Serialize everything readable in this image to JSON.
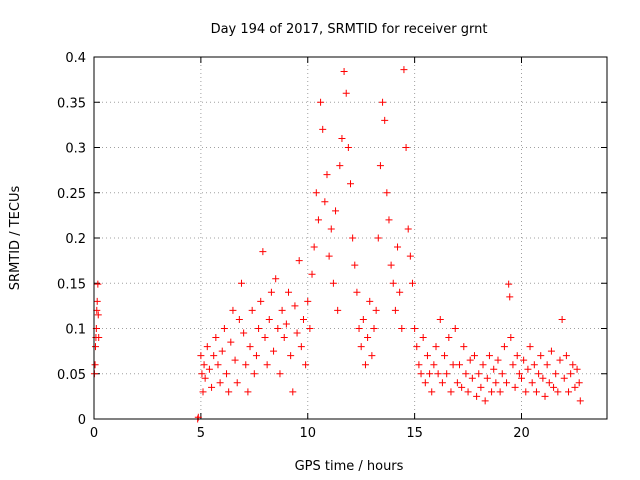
{
  "chart_data": {
    "type": "scatter",
    "title": "Day 194 of 2017, SRMTID for receiver grnt",
    "xlabel": "GPS time / hours",
    "ylabel": "SRMTID / TECUs",
    "xlim": [
      0,
      24
    ],
    "ylim": [
      0,
      0.4
    ],
    "xticks": [
      0,
      5,
      10,
      15,
      20
    ],
    "yticks": [
      0,
      0.05,
      0.1,
      0.15,
      0.2,
      0.25,
      0.3,
      0.35,
      0.4
    ],
    "xtick_labels": [
      "0",
      "5",
      "10",
      "15",
      "20"
    ],
    "ytick_labels": [
      "0",
      "0.05",
      "0.1",
      "0.15",
      "0.2",
      "0.25",
      "0.3",
      "0.35",
      "0.4"
    ],
    "grid": true,
    "marker": "+",
    "colors": {
      "series": "#ff0000",
      "grid": "#a0a0a0",
      "axis": "#000000"
    },
    "series": [
      {
        "name": "SRMTID",
        "points": [
          [
            0.02,
            0.05
          ],
          [
            0.05,
            0.06
          ],
          [
            0.07,
            0.08
          ],
          [
            0.09,
            0.09
          ],
          [
            0.11,
            0.1
          ],
          [
            0.13,
            0.12
          ],
          [
            0.15,
            0.13
          ],
          [
            0.18,
            0.149
          ],
          [
            0.2,
            0.115
          ],
          [
            0.22,
            0.09
          ],
          [
            4.85,
            0.0
          ],
          [
            4.88,
            0.002
          ],
          [
            5.0,
            0.07
          ],
          [
            5.05,
            0.05
          ],
          [
            5.1,
            0.03
          ],
          [
            5.15,
            0.06
          ],
          [
            5.2,
            0.045
          ],
          [
            5.3,
            0.08
          ],
          [
            5.4,
            0.055
          ],
          [
            5.5,
            0.035
          ],
          [
            5.6,
            0.07
          ],
          [
            5.7,
            0.09
          ],
          [
            5.8,
            0.06
          ],
          [
            5.9,
            0.04
          ],
          [
            6.0,
            0.075
          ],
          [
            6.1,
            0.1
          ],
          [
            6.2,
            0.05
          ],
          [
            6.3,
            0.03
          ],
          [
            6.4,
            0.085
          ],
          [
            6.5,
            0.12
          ],
          [
            6.6,
            0.065
          ],
          [
            6.7,
            0.04
          ],
          [
            6.8,
            0.11
          ],
          [
            6.9,
            0.15
          ],
          [
            7.0,
            0.095
          ],
          [
            7.1,
            0.06
          ],
          [
            7.2,
            0.03
          ],
          [
            7.3,
            0.08
          ],
          [
            7.4,
            0.12
          ],
          [
            7.5,
            0.05
          ],
          [
            7.6,
            0.07
          ],
          [
            7.7,
            0.1
          ],
          [
            7.8,
            0.13
          ],
          [
            7.9,
            0.185
          ],
          [
            8.0,
            0.09
          ],
          [
            8.1,
            0.06
          ],
          [
            8.2,
            0.11
          ],
          [
            8.3,
            0.14
          ],
          [
            8.4,
            0.075
          ],
          [
            8.5,
            0.155
          ],
          [
            8.6,
            0.1
          ],
          [
            8.7,
            0.05
          ],
          [
            8.8,
            0.12
          ],
          [
            8.9,
            0.09
          ],
          [
            9.0,
            0.105
          ],
          [
            9.1,
            0.14
          ],
          [
            9.2,
            0.07
          ],
          [
            9.3,
            0.03
          ],
          [
            9.4,
            0.125
          ],
          [
            9.5,
            0.095
          ],
          [
            9.6,
            0.175
          ],
          [
            9.7,
            0.08
          ],
          [
            9.8,
            0.11
          ],
          [
            9.9,
            0.06
          ],
          [
            10.0,
            0.13
          ],
          [
            10.1,
            0.1
          ],
          [
            10.2,
            0.16
          ],
          [
            10.3,
            0.19
          ],
          [
            10.4,
            0.25
          ],
          [
            10.5,
            0.22
          ],
          [
            10.6,
            0.35
          ],
          [
            10.7,
            0.32
          ],
          [
            10.8,
            0.24
          ],
          [
            10.9,
            0.27
          ],
          [
            11.0,
            0.18
          ],
          [
            11.1,
            0.21
          ],
          [
            11.2,
            0.15
          ],
          [
            11.3,
            0.23
          ],
          [
            11.4,
            0.12
          ],
          [
            11.5,
            0.28
          ],
          [
            11.6,
            0.31
          ],
          [
            11.7,
            0.384
          ],
          [
            11.8,
            0.36
          ],
          [
            11.9,
            0.3
          ],
          [
            12.0,
            0.26
          ],
          [
            12.1,
            0.2
          ],
          [
            12.2,
            0.17
          ],
          [
            12.3,
            0.14
          ],
          [
            12.4,
            0.1
          ],
          [
            12.5,
            0.08
          ],
          [
            12.6,
            0.11
          ],
          [
            12.7,
            0.06
          ],
          [
            12.8,
            0.09
          ],
          [
            12.9,
            0.13
          ],
          [
            13.0,
            0.07
          ],
          [
            13.1,
            0.1
          ],
          [
            13.2,
            0.12
          ],
          [
            13.3,
            0.2
          ],
          [
            13.4,
            0.28
          ],
          [
            13.5,
            0.35
          ],
          [
            13.6,
            0.33
          ],
          [
            13.7,
            0.25
          ],
          [
            13.8,
            0.22
          ],
          [
            13.9,
            0.17
          ],
          [
            14.0,
            0.15
          ],
          [
            14.1,
            0.12
          ],
          [
            14.2,
            0.19
          ],
          [
            14.3,
            0.14
          ],
          [
            14.4,
            0.1
          ],
          [
            14.5,
            0.386
          ],
          [
            14.6,
            0.3
          ],
          [
            14.7,
            0.21
          ],
          [
            14.8,
            0.18
          ],
          [
            14.9,
            0.15
          ],
          [
            15.0,
            0.1
          ],
          [
            15.1,
            0.08
          ],
          [
            15.2,
            0.06
          ],
          [
            15.3,
            0.05
          ],
          [
            15.4,
            0.09
          ],
          [
            15.5,
            0.04
          ],
          [
            15.6,
            0.07
          ],
          [
            15.7,
            0.05
          ],
          [
            15.8,
            0.03
          ],
          [
            15.9,
            0.06
          ],
          [
            16.0,
            0.08
          ],
          [
            16.1,
            0.05
          ],
          [
            16.2,
            0.11
          ],
          [
            16.3,
            0.04
          ],
          [
            16.4,
            0.07
          ],
          [
            16.5,
            0.05
          ],
          [
            16.6,
            0.09
          ],
          [
            16.7,
            0.03
          ],
          [
            16.8,
            0.06
          ],
          [
            16.9,
            0.1
          ],
          [
            17.0,
            0.04
          ],
          [
            17.1,
            0.06
          ],
          [
            17.2,
            0.035
          ],
          [
            17.3,
            0.08
          ],
          [
            17.4,
            0.05
          ],
          [
            17.5,
            0.03
          ],
          [
            17.6,
            0.065
          ],
          [
            17.7,
            0.045
          ],
          [
            17.8,
            0.07
          ],
          [
            17.9,
            0.025
          ],
          [
            18.0,
            0.05
          ],
          [
            18.1,
            0.035
          ],
          [
            18.2,
            0.06
          ],
          [
            18.3,
            0.02
          ],
          [
            18.4,
            0.045
          ],
          [
            18.5,
            0.07
          ],
          [
            18.6,
            0.03
          ],
          [
            18.7,
            0.055
          ],
          [
            18.8,
            0.04
          ],
          [
            18.9,
            0.065
          ],
          [
            19.0,
            0.03
          ],
          [
            19.1,
            0.05
          ],
          [
            19.2,
            0.08
          ],
          [
            19.3,
            0.04
          ],
          [
            19.4,
            0.149
          ],
          [
            19.45,
            0.135
          ],
          [
            19.5,
            0.09
          ],
          [
            19.6,
            0.06
          ],
          [
            19.7,
            0.035
          ],
          [
            19.8,
            0.07
          ],
          [
            19.9,
            0.05
          ],
          [
            20.0,
            0.045
          ],
          [
            20.1,
            0.065
          ],
          [
            20.2,
            0.03
          ],
          [
            20.3,
            0.055
          ],
          [
            20.4,
            0.08
          ],
          [
            20.5,
            0.04
          ],
          [
            20.6,
            0.06
          ],
          [
            20.7,
            0.03
          ],
          [
            20.8,
            0.05
          ],
          [
            20.9,
            0.07
          ],
          [
            21.0,
            0.045
          ],
          [
            21.1,
            0.025
          ],
          [
            21.2,
            0.06
          ],
          [
            21.3,
            0.04
          ],
          [
            21.4,
            0.075
          ],
          [
            21.5,
            0.035
          ],
          [
            21.6,
            0.05
          ],
          [
            21.7,
            0.03
          ],
          [
            21.8,
            0.065
          ],
          [
            21.9,
            0.11
          ],
          [
            22.0,
            0.045
          ],
          [
            22.1,
            0.07
          ],
          [
            22.2,
            0.03
          ],
          [
            22.3,
            0.05
          ],
          [
            22.4,
            0.06
          ],
          [
            22.5,
            0.035
          ],
          [
            22.6,
            0.055
          ],
          [
            22.7,
            0.04
          ],
          [
            22.75,
            0.02
          ]
        ]
      }
    ]
  }
}
